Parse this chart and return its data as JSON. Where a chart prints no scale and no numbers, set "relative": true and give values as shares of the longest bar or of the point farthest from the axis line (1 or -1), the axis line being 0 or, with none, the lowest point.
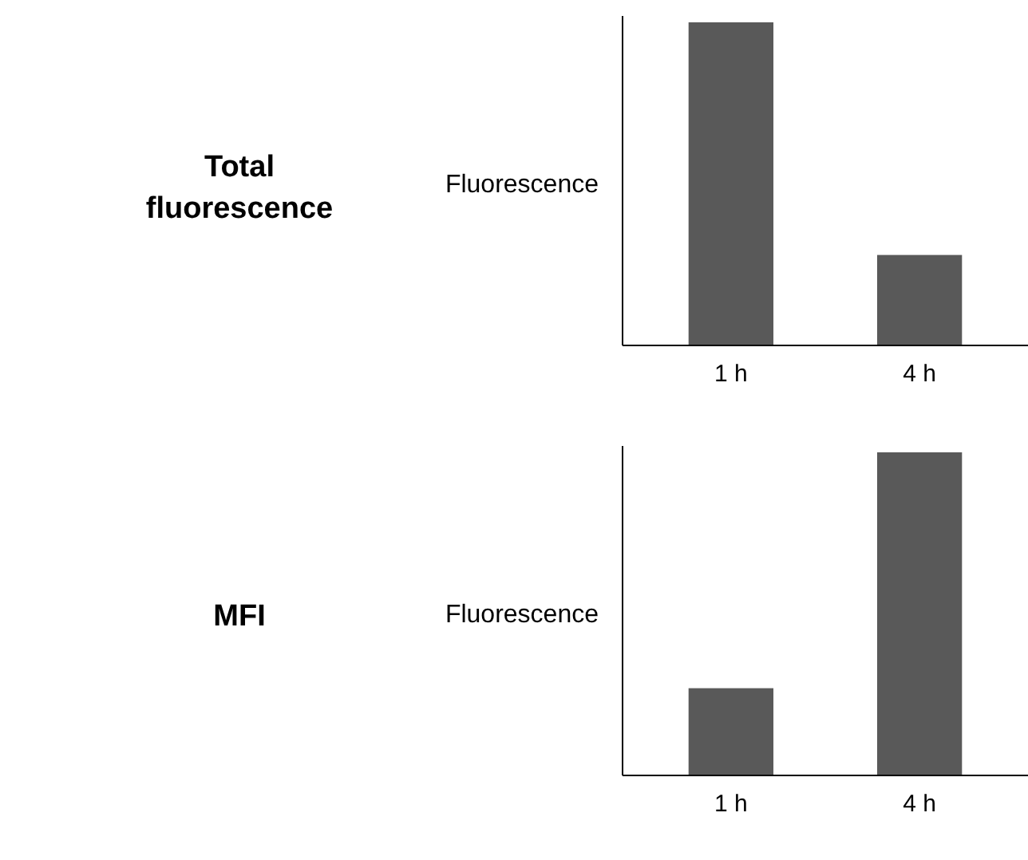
{
  "chart_data": [
    {
      "type": "bar",
      "annotations": [
        "Total fluorescence"
      ],
      "ylabel": "Fluorescence",
      "categories": [
        "1 h",
        "4 h"
      ],
      "values": [
        1,
        0.28
      ],
      "color": "#595959",
      "relative": true
    },
    {
      "type": "bar",
      "annotations": [
        "MFI"
      ],
      "ylabel": "Fluorescence",
      "categories": [
        "1 h",
        "4 h"
      ],
      "values": [
        0.27,
        1
      ],
      "color": "#595959",
      "relative": true
    }
  ]
}
